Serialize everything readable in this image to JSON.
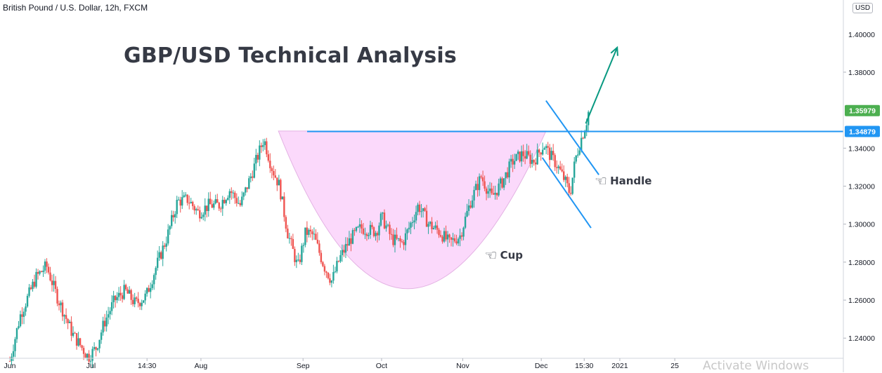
{
  "header": {
    "symbol": "British Pound / U.S. Dollar, 12h, FXCM",
    "currency_button": "USD"
  },
  "watermark": "Activate Windows",
  "colors": {
    "up": "#26a69a",
    "down": "#ef5350",
    "resistance": "#2196f3",
    "cup_fill": "#fbd9fb",
    "arrow": "#089981"
  },
  "chart_data": {
    "type": "candlestick",
    "title": "GBP/USD Technical Analysis",
    "ylim": [
      1.222,
      1.418
    ],
    "y_ticks": [
      1.24,
      1.26,
      1.28,
      1.3,
      1.32,
      1.34,
      1.38
    ],
    "y_tick_labels": [
      "1.24000",
      "1.26000",
      "1.28000",
      "1.30000",
      "1.32000",
      "1.34000",
      "1.38000"
    ],
    "extra_tick_label": "1.40000",
    "x_labels": [
      "Jun",
      "Jul",
      "14:30",
      "Aug",
      "Sep",
      "Oct",
      "Nov",
      "Dec",
      "15:30",
      "2021",
      "25"
    ],
    "x_label_positions": [
      0.0,
      0.155,
      0.262,
      0.365,
      0.56,
      0.71,
      0.865,
      1.015,
      1.097,
      1.165,
      1.27
    ],
    "price_trend": [
      [
        0.0,
        1.228
      ],
      [
        0.02,
        1.252
      ],
      [
        0.05,
        1.272
      ],
      [
        0.07,
        1.278
      ],
      [
        0.09,
        1.262
      ],
      [
        0.12,
        1.242
      ],
      [
        0.15,
        1.23
      ],
      [
        0.165,
        1.235
      ],
      [
        0.18,
        1.248
      ],
      [
        0.2,
        1.26
      ],
      [
        0.22,
        1.265
      ],
      [
        0.24,
        1.258
      ],
      [
        0.26,
        1.262
      ],
      [
        0.28,
        1.278
      ],
      [
        0.3,
        1.293
      ],
      [
        0.32,
        1.312
      ],
      [
        0.34,
        1.313
      ],
      [
        0.36,
        1.306
      ],
      [
        0.38,
        1.31
      ],
      [
        0.4,
        1.31
      ],
      [
        0.42,
        1.318
      ],
      [
        0.44,
        1.31
      ],
      [
        0.46,
        1.325
      ],
      [
        0.485,
        1.345
      ],
      [
        0.5,
        1.33
      ],
      [
        0.515,
        1.32
      ],
      [
        0.53,
        1.296
      ],
      [
        0.55,
        1.277
      ],
      [
        0.565,
        1.296
      ],
      [
        0.58,
        1.294
      ],
      [
        0.6,
        1.278
      ],
      [
        0.615,
        1.27
      ],
      [
        0.63,
        1.282
      ],
      [
        0.65,
        1.292
      ],
      [
        0.67,
        1.298
      ],
      [
        0.7,
        1.296
      ],
      [
        0.71,
        1.304
      ],
      [
        0.73,
        1.292
      ],
      [
        0.75,
        1.29
      ],
      [
        0.77,
        1.303
      ],
      [
        0.78,
        1.31
      ],
      [
        0.8,
        1.3
      ],
      [
        0.82,
        1.296
      ],
      [
        0.84,
        1.29
      ],
      [
        0.86,
        1.294
      ],
      [
        0.88,
        1.312
      ],
      [
        0.9,
        1.325
      ],
      [
        0.92,
        1.314
      ],
      [
        0.94,
        1.322
      ],
      [
        0.96,
        1.333
      ],
      [
        0.98,
        1.337
      ],
      [
        1.0,
        1.333
      ],
      [
        1.02,
        1.342
      ],
      [
        1.03,
        1.337
      ],
      [
        1.045,
        1.331
      ],
      [
        1.06,
        1.323
      ],
      [
        1.07,
        1.316
      ],
      [
        1.08,
        1.334
      ],
      [
        1.09,
        1.344
      ],
      [
        1.1,
        1.352
      ],
      [
        1.105,
        1.359
      ]
    ],
    "resistance": {
      "value": 1.34879,
      "label": "1.34879"
    },
    "last_price": {
      "value": 1.35979,
      "label": "1.35979"
    },
    "cup": {
      "start": [
        0.513,
        1.349
      ],
      "bottom": [
        0.76,
        1.266
      ],
      "end": [
        1.024,
        1.349
      ]
    },
    "handle_channel": {
      "upper": [
        [
          1.024,
          1.365
        ],
        [
          1.125,
          1.326
        ]
      ],
      "lower": [
        [
          1.017,
          1.335
        ],
        [
          1.11,
          1.298
        ]
      ]
    },
    "breakout_arrow": {
      "from": [
        1.1,
        1.353
      ],
      "to": [
        1.16,
        1.393
      ]
    },
    "annotations": [
      {
        "text": "Handle",
        "x": 1.125,
        "y": 1.322
      },
      {
        "text": "Cup",
        "x": 0.915,
        "y": 1.283
      }
    ]
  }
}
